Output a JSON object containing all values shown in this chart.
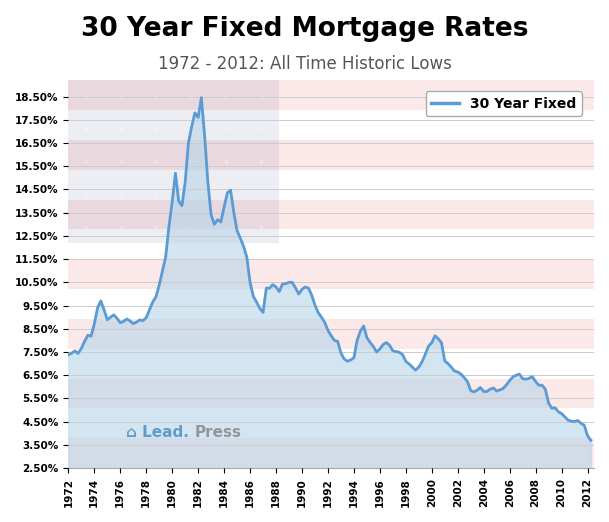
{
  "title": "30 Year Fixed Mortgage Rates",
  "subtitle": "1972 - 2012: All Time Historic Lows",
  "legend_label": "30 Year Fixed",
  "yticks": [
    2.5,
    3.5,
    4.5,
    5.5,
    6.5,
    7.5,
    8.5,
    9.5,
    10.5,
    11.5,
    12.5,
    13.5,
    14.5,
    15.5,
    16.5,
    17.5,
    18.5
  ],
  "xticks": [
    1972,
    1974,
    1976,
    1978,
    1980,
    1982,
    1984,
    1986,
    1988,
    1990,
    1992,
    1994,
    1996,
    1998,
    2000,
    2002,
    2004,
    2006,
    2008,
    2010,
    2012
  ],
  "ylim": [
    2.5,
    19.2
  ],
  "xlim": [
    1972,
    2012.5
  ],
  "line_color": "#5b9bd5",
  "line_width": 2.0,
  "fill_color": "#b8d4ea",
  "fill_alpha": 0.6,
  "background_color": "#ffffff",
  "grid_color": "#cccccc",
  "stripe_red": "#dd2222",
  "stripe_alpha": 0.1,
  "canton_color": "#1a2e6e",
  "canton_alpha": 0.08,
  "years": [
    1972.0,
    1972.25,
    1972.5,
    1972.75,
    1973.0,
    1973.25,
    1973.5,
    1973.75,
    1974.0,
    1974.25,
    1974.5,
    1974.75,
    1975.0,
    1975.25,
    1975.5,
    1975.75,
    1976.0,
    1976.25,
    1976.5,
    1976.75,
    1977.0,
    1977.25,
    1977.5,
    1977.75,
    1978.0,
    1978.25,
    1978.5,
    1978.75,
    1979.0,
    1979.25,
    1979.5,
    1979.75,
    1980.0,
    1980.25,
    1980.5,
    1980.75,
    1981.0,
    1981.25,
    1981.5,
    1981.75,
    1982.0,
    1982.25,
    1982.5,
    1982.75,
    1983.0,
    1983.25,
    1983.5,
    1983.75,
    1984.0,
    1984.25,
    1984.5,
    1984.75,
    1985.0,
    1985.25,
    1985.5,
    1985.75,
    1986.0,
    1986.25,
    1986.5,
    1986.75,
    1987.0,
    1987.25,
    1987.5,
    1987.75,
    1988.0,
    1988.25,
    1988.5,
    1988.75,
    1989.0,
    1989.25,
    1989.5,
    1989.75,
    1990.0,
    1990.25,
    1990.5,
    1990.75,
    1991.0,
    1991.25,
    1991.5,
    1991.75,
    1992.0,
    1992.25,
    1992.5,
    1992.75,
    1993.0,
    1993.25,
    1993.5,
    1993.75,
    1994.0,
    1994.25,
    1994.5,
    1994.75,
    1995.0,
    1995.25,
    1995.5,
    1995.75,
    1996.0,
    1996.25,
    1996.5,
    1996.75,
    1997.0,
    1997.25,
    1997.5,
    1997.75,
    1998.0,
    1998.25,
    1998.5,
    1998.75,
    1999.0,
    1999.25,
    1999.5,
    1999.75,
    2000.0,
    2000.25,
    2000.5,
    2000.75,
    2001.0,
    2001.25,
    2001.5,
    2001.75,
    2002.0,
    2002.25,
    2002.5,
    2002.75,
    2003.0,
    2003.25,
    2003.5,
    2003.75,
    2004.0,
    2004.25,
    2004.5,
    2004.75,
    2005.0,
    2005.25,
    2005.5,
    2005.75,
    2006.0,
    2006.25,
    2006.5,
    2006.75,
    2007.0,
    2007.25,
    2007.5,
    2007.75,
    2008.0,
    2008.25,
    2008.5,
    2008.75,
    2009.0,
    2009.25,
    2009.5,
    2009.75,
    2010.0,
    2010.25,
    2010.5,
    2010.75,
    2011.0,
    2011.25,
    2011.5,
    2011.75,
    2012.0,
    2012.25
  ],
  "rates": [
    7.38,
    7.45,
    7.55,
    7.44,
    7.65,
    7.96,
    8.22,
    8.18,
    8.71,
    9.4,
    9.7,
    9.32,
    8.89,
    9.0,
    9.1,
    8.95,
    8.76,
    8.82,
    8.92,
    8.84,
    8.72,
    8.79,
    8.88,
    8.85,
    8.98,
    9.32,
    9.65,
    9.88,
    10.38,
    11.0,
    11.6,
    12.9,
    13.95,
    15.2,
    14.0,
    13.8,
    14.8,
    16.5,
    17.2,
    17.8,
    17.6,
    18.45,
    16.8,
    14.8,
    13.4,
    13.0,
    13.2,
    13.1,
    13.74,
    14.35,
    14.47,
    13.5,
    12.72,
    12.4,
    12.05,
    11.58,
    10.5,
    9.9,
    9.65,
    9.38,
    9.2,
    10.25,
    10.25,
    10.4,
    10.3,
    10.1,
    10.43,
    10.44,
    10.5,
    10.5,
    10.26,
    10.0,
    10.2,
    10.3,
    10.25,
    9.95,
    9.52,
    9.2,
    9.0,
    8.78,
    8.43,
    8.2,
    8.0,
    7.96,
    7.46,
    7.2,
    7.1,
    7.16,
    7.25,
    8.0,
    8.4,
    8.62,
    8.12,
    7.91,
    7.74,
    7.5,
    7.63,
    7.82,
    7.91,
    7.79,
    7.55,
    7.52,
    7.49,
    7.39,
    7.1,
    6.99,
    6.85,
    6.72,
    6.85,
    7.08,
    7.4,
    7.75,
    7.9,
    8.2,
    8.07,
    7.9,
    7.12,
    7.0,
    6.85,
    6.68,
    6.64,
    6.55,
    6.4,
    6.22,
    5.84,
    5.78,
    5.86,
    5.97,
    5.8,
    5.8,
    5.9,
    5.95,
    5.82,
    5.87,
    5.93,
    6.08,
    6.27,
    6.43,
    6.5,
    6.55,
    6.35,
    6.33,
    6.37,
    6.44,
    6.23,
    6.07,
    6.07,
    5.9,
    5.3,
    5.08,
    5.1,
    4.93,
    4.85,
    4.71,
    4.57,
    4.52,
    4.51,
    4.55,
    4.43,
    4.35,
    3.9,
    3.7
  ]
}
